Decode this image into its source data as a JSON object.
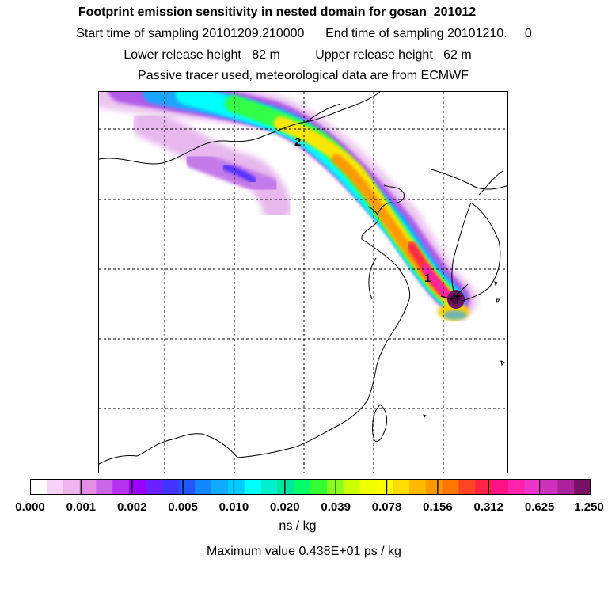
{
  "header": {
    "title": "Footprint emission sensitivity in nested domain for gosan_201012",
    "sampling_line": "Start time of sampling 20101209.210000      End time of sampling 20101210.     0",
    "release_line": "Lower release height   82 m          Upper release height   62 m",
    "tracer_line": "Passive tracer used, meteorological data are from ECMWF"
  },
  "map": {
    "markers": [
      {
        "label": "2",
        "name": "marker-2"
      },
      {
        "label": "1",
        "name": "marker-1"
      }
    ],
    "receptor_symbol": "receptor-icon"
  },
  "colorbar": {
    "colors": [
      "#ffffff",
      "#f7d4f7",
      "#efb4ef",
      "#e38de3",
      "#cc66e8",
      "#b533f0",
      "#9900ff",
      "#6a20ff",
      "#4433ff",
      "#2255ff",
      "#1188ff",
      "#11aaff",
      "#00ccff",
      "#00ffff",
      "#00f0cc",
      "#00e6a0",
      "#00ff66",
      "#33ff33",
      "#88ff22",
      "#ccff00",
      "#eeff00",
      "#ffff00",
      "#ffdd00",
      "#ffbb00",
      "#ff9900",
      "#ff7700",
      "#ff4422",
      "#ff2244",
      "#ff1188",
      "#ff22aa",
      "#ee33cc",
      "#cc33bb",
      "#aa2299",
      "#771166"
    ],
    "ticks": [
      "0.000",
      "0.001",
      "0.002",
      "0.005",
      "0.010",
      "0.020",
      "0.039",
      "0.078",
      "0.156",
      "0.312",
      "0.625",
      "1.250"
    ],
    "units": "ns / kg"
  },
  "footer": {
    "max_value": "Maximum value  0.438E+01 ps / kg"
  }
}
